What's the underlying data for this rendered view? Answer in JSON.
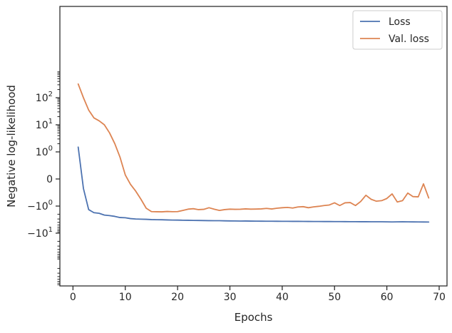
{
  "chart_data": {
    "type": "line",
    "xlabel": "Epochs",
    "ylabel": "Negative log-likelihood",
    "yscale": "symlog",
    "xlim": [
      -2.5,
      71.5
    ],
    "xticks": [
      0,
      10,
      20,
      30,
      40,
      50,
      60,
      70
    ],
    "xtick_labels": [
      "0",
      "10",
      "20",
      "30",
      "40",
      "50",
      "60",
      "70"
    ],
    "ytick_labels": [
      {
        "value": 100,
        "mantissa": "10",
        "exp": "2",
        "sign": ""
      },
      {
        "value": 10,
        "mantissa": "10",
        "exp": "1",
        "sign": ""
      },
      {
        "value": 1,
        "mantissa": "10",
        "exp": "0",
        "sign": ""
      },
      {
        "value": 0,
        "mantissa": "0",
        "exp": "",
        "sign": ""
      },
      {
        "value": -1,
        "mantissa": "10",
        "exp": "0",
        "sign": "−"
      },
      {
        "value": -10,
        "mantissa": "10",
        "exp": "1",
        "sign": "−"
      }
    ],
    "legend_position": "top-right",
    "grid": false,
    "series": [
      {
        "name": "Loss",
        "color": "#4c72b0",
        "x": [
          1,
          2,
          3,
          4,
          5,
          6,
          7,
          8,
          9,
          10,
          11,
          12,
          13,
          14,
          15,
          16,
          17,
          18,
          19,
          20,
          21,
          22,
          23,
          24,
          25,
          26,
          27,
          28,
          29,
          30,
          31,
          32,
          33,
          34,
          35,
          36,
          37,
          38,
          39,
          40,
          41,
          42,
          43,
          44,
          45,
          46,
          47,
          48,
          49,
          50,
          51,
          52,
          53,
          54,
          55,
          56,
          57,
          58,
          59,
          60,
          61,
          62,
          63,
          64,
          65,
          66,
          67,
          68
        ],
        "y": [
          1.5,
          -0.35,
          -1.35,
          -1.75,
          -1.85,
          -2.15,
          -2.25,
          -2.4,
          -2.65,
          -2.7,
          -2.9,
          -3.0,
          -3.05,
          -3.08,
          -3.15,
          -3.18,
          -3.2,
          -3.25,
          -3.28,
          -3.3,
          -3.33,
          -3.35,
          -3.38,
          -3.4,
          -3.42,
          -3.45,
          -3.47,
          -3.47,
          -3.5,
          -3.53,
          -3.55,
          -3.57,
          -3.56,
          -3.58,
          -3.6,
          -3.61,
          -3.62,
          -3.63,
          -3.64,
          -3.65,
          -3.66,
          -3.67,
          -3.67,
          -3.68,
          -3.69,
          -3.7,
          -3.71,
          -3.72,
          -3.72,
          -3.73,
          -3.74,
          -3.75,
          -3.76,
          -3.77,
          -3.78,
          -3.78,
          -3.79,
          -3.8,
          -3.8,
          -3.82,
          -3.85,
          -3.83,
          -3.81,
          -3.82,
          -3.84,
          -3.85,
          -3.86,
          -3.88
        ]
      },
      {
        "name": "Val. loss",
        "color": "#dd8452",
        "x": [
          1,
          2,
          3,
          4,
          5,
          6,
          7,
          8,
          9,
          10,
          11,
          12,
          13,
          14,
          15,
          16,
          17,
          18,
          19,
          20,
          21,
          22,
          23,
          24,
          25,
          26,
          27,
          28,
          29,
          30,
          31,
          32,
          33,
          34,
          35,
          36,
          37,
          38,
          39,
          40,
          41,
          42,
          43,
          44,
          45,
          46,
          47,
          48,
          49,
          50,
          51,
          52,
          53,
          54,
          55,
          56,
          57,
          58,
          59,
          60,
          61,
          62,
          63,
          64,
          65,
          66,
          67,
          68
        ],
        "y": [
          320,
          100,
          35,
          18,
          14,
          10,
          5,
          2,
          0.8,
          0.15,
          -0.2,
          -0.45,
          -0.75,
          -1.2,
          -1.6,
          -1.62,
          -1.63,
          -1.58,
          -1.61,
          -1.6,
          -1.45,
          -1.3,
          -1.25,
          -1.35,
          -1.32,
          -1.15,
          -1.3,
          -1.45,
          -1.35,
          -1.3,
          -1.32,
          -1.31,
          -1.27,
          -1.3,
          -1.29,
          -1.27,
          -1.22,
          -1.28,
          -1.2,
          -1.15,
          -1.12,
          -1.18,
          -1.08,
          -1.05,
          -1.15,
          -1.07,
          -1.02,
          -0.98,
          -0.96,
          -0.88,
          -0.98,
          -0.88,
          -0.87,
          -0.98,
          -0.83,
          -0.6,
          -0.75,
          -0.82,
          -0.8,
          -0.72,
          -0.55,
          -0.85,
          -0.8,
          -0.52,
          -0.65,
          -0.66,
          -0.18,
          -0.7
        ]
      }
    ]
  }
}
